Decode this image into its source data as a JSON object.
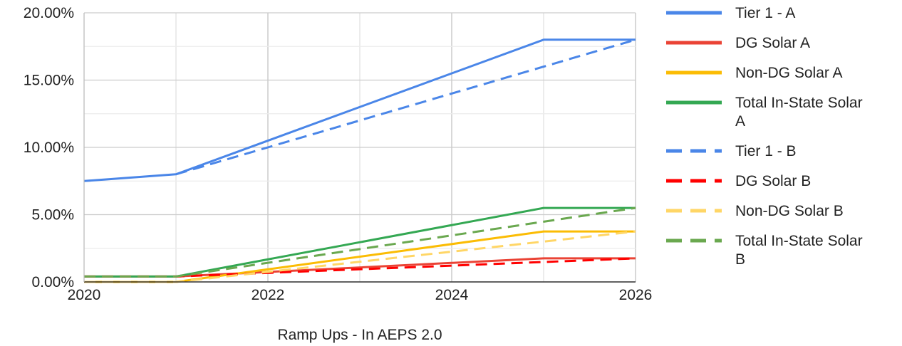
{
  "chart_data": {
    "type": "line",
    "title": "",
    "xlabel": "Ramp Ups - In AEPS 2.0",
    "ylabel": "",
    "xlim": [
      2020,
      2026
    ],
    "ylim": [
      0,
      20
    ],
    "x_ticks": [
      "2020",
      "2022",
      "2024",
      "2026"
    ],
    "y_ticks": [
      "0.00%",
      "5.00%",
      "10.00%",
      "15.00%",
      "20.00%"
    ],
    "grid": true,
    "legend_position": "right",
    "series": [
      {
        "name": "Tier 1 - A",
        "name_lines": [
          "Tier 1 - A"
        ],
        "color": "#4a86e8",
        "dash": "solid",
        "points": [
          [
            2020,
            7.5
          ],
          [
            2021,
            8.0
          ],
          [
            2025,
            18.0
          ],
          [
            2026,
            18.0
          ]
        ]
      },
      {
        "name": "DG Solar A",
        "name_lines": [
          "DG Solar A"
        ],
        "color": "#ea4335",
        "dash": "solid",
        "points": [
          [
            2020,
            0.4
          ],
          [
            2021,
            0.4
          ],
          [
            2025,
            1.75
          ],
          [
            2026,
            1.75
          ]
        ]
      },
      {
        "name": "Non-DG Solar A",
        "name_lines": [
          "Non-DG Solar A"
        ],
        "color": "#fbbc04",
        "dash": "solid",
        "points": [
          [
            2020,
            0.0
          ],
          [
            2021,
            0.0
          ],
          [
            2025,
            3.75
          ],
          [
            2026,
            3.75
          ]
        ]
      },
      {
        "name": "Total In-State Solar A",
        "name_lines": [
          "Total In-State Solar",
          "A"
        ],
        "color": "#34a853",
        "dash": "solid",
        "points": [
          [
            2020,
            0.4
          ],
          [
            2021,
            0.4
          ],
          [
            2025,
            5.5
          ],
          [
            2026,
            5.5
          ]
        ]
      },
      {
        "name": "Tier 1 - B",
        "name_lines": [
          "Tier 1 - B"
        ],
        "color": "#4a86e8",
        "dash": "dashed",
        "points": [
          [
            2021,
            8.0
          ],
          [
            2026,
            18.0
          ]
        ]
      },
      {
        "name": "DG Solar B",
        "name_lines": [
          "DG Solar B"
        ],
        "color": "#ff0000",
        "dash": "dashed",
        "points": [
          [
            2020,
            0.4
          ],
          [
            2021,
            0.4
          ],
          [
            2026,
            1.75
          ]
        ]
      },
      {
        "name": "Non-DG Solar B",
        "name_lines": [
          "Non-DG Solar B"
        ],
        "color": "#ffd666",
        "dash": "dashed",
        "points": [
          [
            2020,
            0.0
          ],
          [
            2021,
            0.0
          ],
          [
            2026,
            3.75
          ]
        ]
      },
      {
        "name": "Total In-State Solar B",
        "name_lines": [
          "Total In-State Solar",
          "B"
        ],
        "color": "#6aa84f",
        "dash": "dashed",
        "points": [
          [
            2020,
            0.4
          ],
          [
            2021,
            0.4
          ],
          [
            2026,
            5.5
          ]
        ]
      }
    ]
  }
}
